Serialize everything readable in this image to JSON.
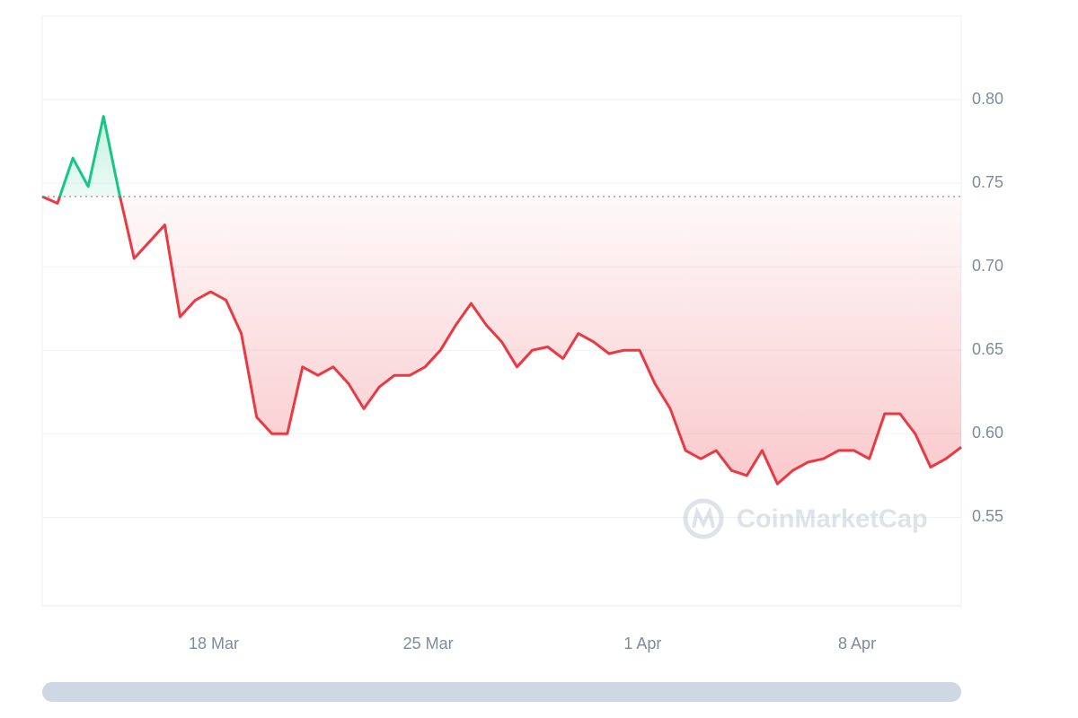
{
  "chart_data": {
    "type": "line",
    "watermark": "CoinMarketCap",
    "x": [
      12.4,
      12.9,
      13.4,
      13.9,
      14.4,
      14.9,
      15.4,
      15.9,
      16.4,
      16.9,
      17.4,
      17.9,
      18.4,
      18.9,
      19.4,
      19.9,
      20.4,
      20.9,
      21.4,
      21.9,
      22.4,
      22.9,
      23.4,
      23.9,
      24.4,
      24.9,
      25.4,
      25.9,
      26.4,
      26.9,
      27.4,
      27.9,
      28.4,
      28.9,
      29.4,
      29.9,
      30.4,
      30.9,
      31.4,
      31.9,
      32.4,
      32.9,
      33.4,
      33.9,
      34.4,
      34.9,
      35.4,
      35.9,
      36.4,
      36.9,
      37.4,
      37.9,
      38.4,
      38.9,
      39.4,
      39.9,
      40.4,
      40.9,
      41.4,
      41.9,
      42.4
    ],
    "values": [
      0.742,
      0.738,
      0.765,
      0.748,
      0.79,
      0.745,
      0.705,
      0.715,
      0.725,
      0.67,
      0.68,
      0.685,
      0.68,
      0.66,
      0.61,
      0.6,
      0.6,
      0.64,
      0.635,
      0.64,
      0.63,
      0.615,
      0.628,
      0.635,
      0.635,
      0.64,
      0.65,
      0.665,
      0.678,
      0.665,
      0.655,
      0.64,
      0.65,
      0.652,
      0.645,
      0.66,
      0.655,
      0.648,
      0.65,
      0.65,
      0.63,
      0.615,
      0.59,
      0.585,
      0.59,
      0.578,
      0.575,
      0.59,
      0.57,
      0.578,
      0.583,
      0.585,
      0.59,
      0.59,
      0.585,
      0.612,
      0.612,
      0.6,
      0.58,
      0.585,
      0.592
    ],
    "baseline": 0.742,
    "up_color": "#16c784",
    "down_color": "#ea3943",
    "xlim": [
      12.4,
      42.4
    ],
    "xticks": [
      {
        "value": 18,
        "label": "18 Mar"
      },
      {
        "value": 25,
        "label": "25 Mar"
      },
      {
        "value": 32,
        "label": "1 Apr"
      },
      {
        "value": 39,
        "label": "8 Apr"
      }
    ],
    "ylim": [
      0.497,
      0.85
    ],
    "yticks": [
      0.55,
      {
        "value": 0.6,
        "label": "0.60"
      },
      0.65,
      {
        "value": 0.7,
        "label": "0.70"
      },
      0.75,
      {
        "value": 0.8,
        "label": "0.80"
      }
    ],
    "grid": true
  }
}
